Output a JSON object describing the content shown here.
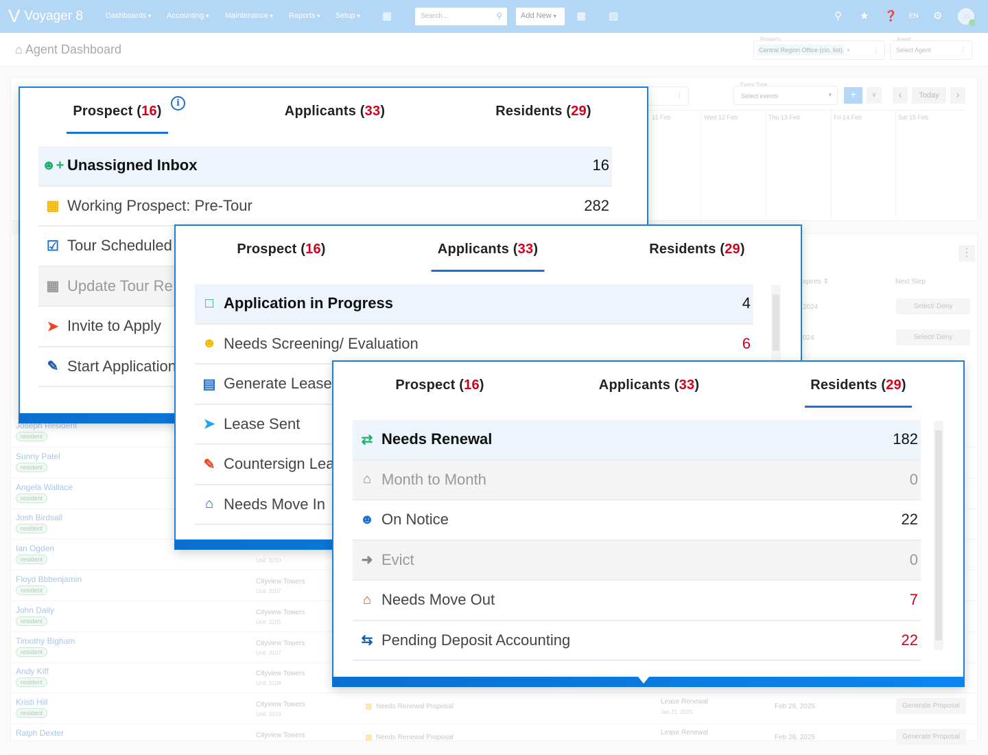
{
  "nav": {
    "brand": "Voyager 8",
    "menus": [
      "Dashboards",
      "Accounting",
      "Maintenance",
      "Reports",
      "Setup"
    ],
    "search_placeholder": "Search...",
    "add_new": "Add New",
    "language": "EN",
    "avatar_initials": "JD",
    "color": "#b3d7f5"
  },
  "header": {
    "title": "Agent Dashboard",
    "property_label": "Property",
    "property_value": "Central Region Office (clo, list)",
    "agent_label": "Agent",
    "agent_placeholder": "Select Agent"
  },
  "calendar": {
    "event_type_label": "Event Type",
    "event_type_placeholder": "Select events",
    "today": "Today",
    "days": [
      "11 Feb",
      "Wed 12 Feb",
      "Thu 13 Feb",
      "Fri 14 Feb",
      "Sat 15 Feb"
    ]
  },
  "table_bg": {
    "col_expires": "xpires",
    "col_next_step": "Next Step",
    "expires": [
      "2024",
      "024"
    ],
    "select_deny": "Select/ Deny",
    "residents": [
      {
        "name": "Joseph Resident",
        "tag": "resident"
      },
      {
        "name": "Sunny Patel",
        "tag": "resident"
      },
      {
        "name": "Angela Wallace",
        "tag": "resident"
      },
      {
        "name": "Josh Birdsall",
        "tag": "resident"
      },
      {
        "name": "Ian Ogden",
        "tag": "resident",
        "property": "",
        "unit": "Unit: 3210"
      },
      {
        "name": "Floyd Bbbenjamin",
        "tag": "resident",
        "property": "Cityview Towers",
        "unit": "Unit: 3207"
      },
      {
        "name": "John Daily",
        "tag": "resident",
        "property": "Cityview Towers",
        "unit": "Unit: 3205"
      },
      {
        "name": "Timothy Bigham",
        "tag": "resident",
        "property": "Cityview Towers",
        "unit": "Unit: 3107"
      },
      {
        "name": "Andy Kiff",
        "tag": "resident",
        "property": "Cityview Towers",
        "unit": "Unit: 3104"
      },
      {
        "name": "Kristi Hill",
        "tag": "resident",
        "property": "Cityview Towers",
        "unit": "Unit: 3103"
      },
      {
        "name": "Ralph Dexter",
        "tag": "",
        "property": "Cityview Towers",
        "unit": ""
      }
    ],
    "bottom_rows": [
      {
        "status": "Needs Renewal Proposal",
        "type": "Lease Renewal",
        "type_date": "Jan 21, 2025",
        "date": "Feb 28, 2025",
        "action": "Generate Proposal"
      },
      {
        "status": "Needs Renewal Proposal",
        "type": "Lease Renewal",
        "type_date": "",
        "date": "Feb 28, 2025",
        "action": "Generate Proposal"
      }
    ]
  },
  "panels": [
    {
      "tabs": [
        {
          "label": "Prospect",
          "count": "16"
        },
        {
          "label": "Applicants",
          "count": "33"
        },
        {
          "label": "Residents",
          "count": "29"
        }
      ],
      "active_tab": 0,
      "rows": [
        {
          "icon": "user-plus-icon",
          "icon_color": "#1fae6e",
          "label": "Unassigned Inbox",
          "count": "16"
        },
        {
          "icon": "calendar-plus-icon",
          "icon_color": "#f5b800",
          "label": "Working Prospect: Pre-Tour",
          "count": "282"
        },
        {
          "icon": "calendar-check-icon",
          "icon_color": "#1a6fd1",
          "label": "Tour Scheduled",
          "count": ""
        },
        {
          "icon": "calendar-exclamation-icon",
          "icon_color": "#999999",
          "label": "Update Tour Re",
          "count": ""
        },
        {
          "icon": "paper-plane-icon",
          "icon_color": "#f0421c",
          "label": "Invite to Apply",
          "count": ""
        },
        {
          "icon": "file-signature-icon",
          "icon_color": "#1559a8",
          "label": "Start Application",
          "count": ""
        }
      ]
    },
    {
      "tabs": [
        {
          "label": "Prospect",
          "count": "16"
        },
        {
          "label": "Applicants",
          "count": "33"
        },
        {
          "label": "Residents",
          "count": "29"
        }
      ],
      "active_tab": 1,
      "rows": [
        {
          "icon": "file-plus-icon",
          "icon_color": "#1fae6e",
          "label": "Application in Progress",
          "count": "4"
        },
        {
          "icon": "user-shield-icon",
          "icon_color": "#f5b800",
          "label": "Needs Screening/ Evaluation",
          "count": "6",
          "alert": true
        },
        {
          "icon": "file-contract-icon",
          "icon_color": "#1a6fd1",
          "label": "Generate Lease",
          "count": ""
        },
        {
          "icon": "paper-plane-icon",
          "icon_color": "#18a8f0",
          "label": "Lease Sent",
          "count": ""
        },
        {
          "icon": "file-signature-icon",
          "icon_color": "#f0421c",
          "label": "Countersign Lease",
          "count": ""
        },
        {
          "icon": "house-person-icon",
          "icon_color": "#1559a8",
          "label": "Needs Move In",
          "count": ""
        }
      ]
    },
    {
      "tabs": [
        {
          "label": "Prospect",
          "count": "16"
        },
        {
          "label": "Applicants",
          "count": "33"
        },
        {
          "label": "Residents",
          "count": "29"
        }
      ],
      "active_tab": 2,
      "rows": [
        {
          "icon": "refresh-icon",
          "icon_color": "#1fae6e",
          "label": "Needs Renewal",
          "count": "182"
        },
        {
          "icon": "house-icon",
          "icon_color": "#888888",
          "label": "Month to Month",
          "count": "0",
          "muted": true
        },
        {
          "icon": "user-clock-icon",
          "icon_color": "#1a6fd1",
          "label": "On Notice",
          "count": "22"
        },
        {
          "icon": "person-exit-icon",
          "icon_color": "#888888",
          "label": "Evict",
          "count": "0",
          "muted": true
        },
        {
          "icon": "house-person-out-icon",
          "icon_color": "#f0421c",
          "label": "Needs Move Out",
          "count": "7",
          "alert": true
        },
        {
          "icon": "money-transfer-icon",
          "icon_color": "#1559a8",
          "label": "Pending Deposit Accounting",
          "count": "22",
          "alert": true
        }
      ]
    }
  ]
}
